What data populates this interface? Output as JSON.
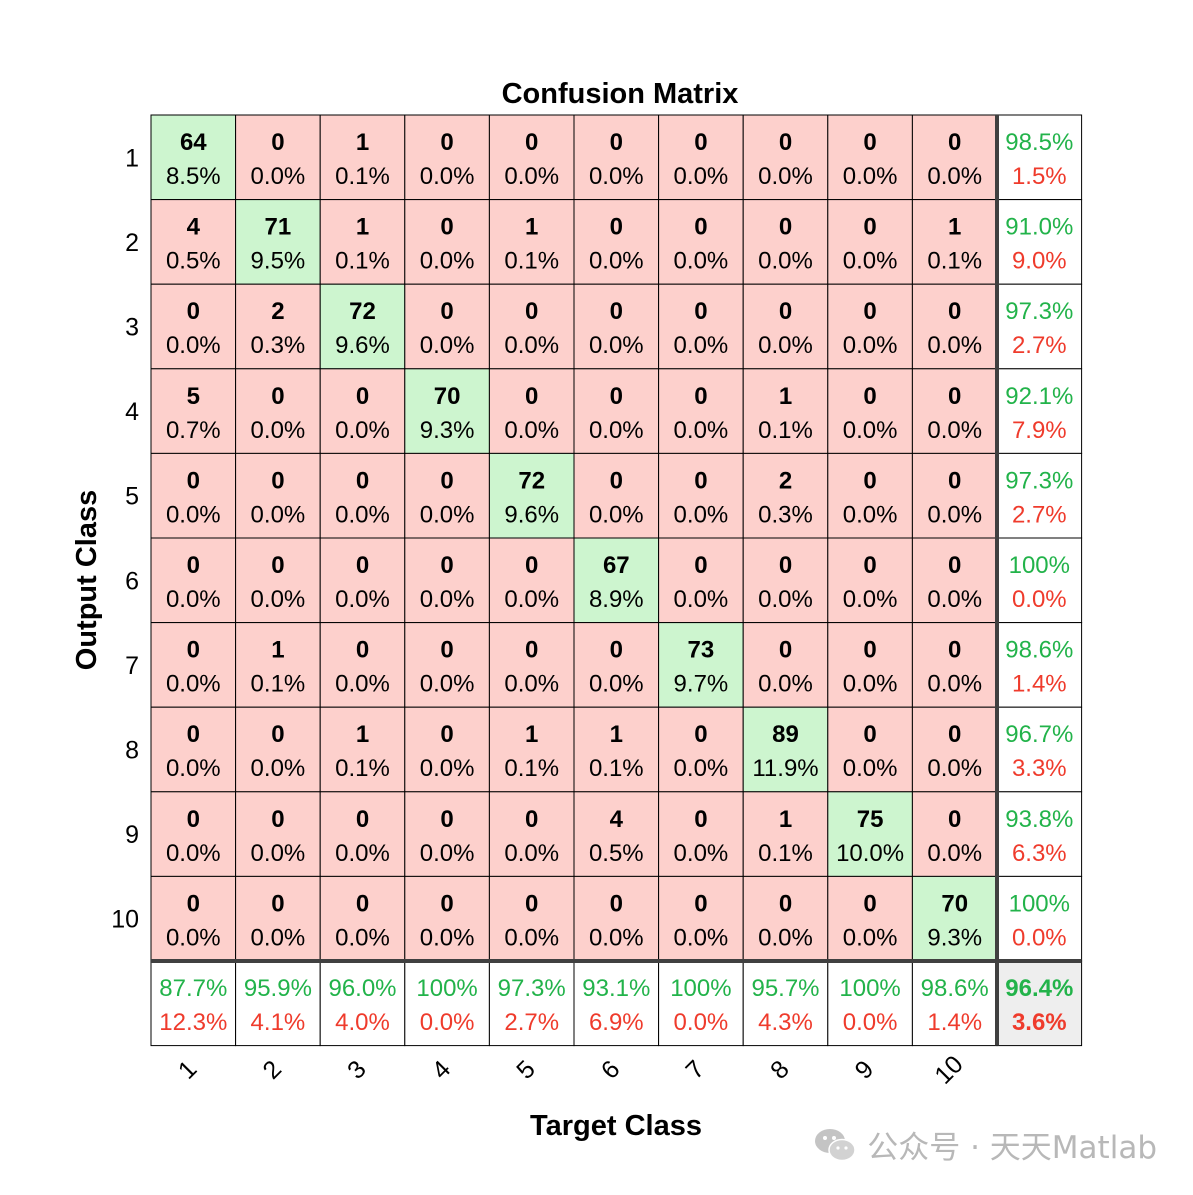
{
  "chart_data": {
    "type": "heatmap",
    "title": "Confusion Matrix",
    "xlabel": "Target Class",
    "ylabel": "Output Class",
    "row_labels": [
      "1",
      "2",
      "3",
      "4",
      "5",
      "6",
      "7",
      "8",
      "9",
      "10"
    ],
    "col_labels": [
      "1",
      "2",
      "3",
      "4",
      "5",
      "6",
      "7",
      "8",
      "9",
      "10"
    ],
    "matrix_counts": [
      [
        64,
        0,
        1,
        0,
        0,
        0,
        0,
        0,
        0,
        0
      ],
      [
        4,
        71,
        1,
        0,
        1,
        0,
        0,
        0,
        0,
        1
      ],
      [
        0,
        2,
        72,
        0,
        0,
        0,
        0,
        0,
        0,
        0
      ],
      [
        5,
        0,
        0,
        70,
        0,
        0,
        0,
        1,
        0,
        0
      ],
      [
        0,
        0,
        0,
        0,
        72,
        0,
        0,
        2,
        0,
        0
      ],
      [
        0,
        0,
        0,
        0,
        0,
        67,
        0,
        0,
        0,
        0
      ],
      [
        0,
        1,
        0,
        0,
        0,
        0,
        73,
        0,
        0,
        0
      ],
      [
        0,
        0,
        1,
        0,
        1,
        1,
        0,
        89,
        0,
        0
      ],
      [
        0,
        0,
        0,
        0,
        0,
        4,
        0,
        1,
        75,
        0
      ],
      [
        0,
        0,
        0,
        0,
        0,
        0,
        0,
        0,
        0,
        70
      ]
    ],
    "matrix_percents": [
      [
        "8.5%",
        "0.0%",
        "0.1%",
        "0.0%",
        "0.0%",
        "0.0%",
        "0.0%",
        "0.0%",
        "0.0%",
        "0.0%"
      ],
      [
        "0.5%",
        "9.5%",
        "0.1%",
        "0.0%",
        "0.1%",
        "0.0%",
        "0.0%",
        "0.0%",
        "0.0%",
        "0.1%"
      ],
      [
        "0.0%",
        "0.3%",
        "9.6%",
        "0.0%",
        "0.0%",
        "0.0%",
        "0.0%",
        "0.0%",
        "0.0%",
        "0.0%"
      ],
      [
        "0.7%",
        "0.0%",
        "0.0%",
        "9.3%",
        "0.0%",
        "0.0%",
        "0.0%",
        "0.1%",
        "0.0%",
        "0.0%"
      ],
      [
        "0.0%",
        "0.0%",
        "0.0%",
        "0.0%",
        "9.6%",
        "0.0%",
        "0.0%",
        "0.3%",
        "0.0%",
        "0.0%"
      ],
      [
        "0.0%",
        "0.0%",
        "0.0%",
        "0.0%",
        "0.0%",
        "8.9%",
        "0.0%",
        "0.0%",
        "0.0%",
        "0.0%"
      ],
      [
        "0.0%",
        "0.1%",
        "0.0%",
        "0.0%",
        "0.0%",
        "0.0%",
        "9.7%",
        "0.0%",
        "0.0%",
        "0.0%"
      ],
      [
        "0.0%",
        "0.0%",
        "0.1%",
        "0.0%",
        "0.1%",
        "0.1%",
        "0.0%",
        "11.9%",
        "0.0%",
        "0.0%"
      ],
      [
        "0.0%",
        "0.0%",
        "0.0%",
        "0.0%",
        "0.0%",
        "0.5%",
        "0.0%",
        "0.1%",
        "10.0%",
        "0.0%"
      ],
      [
        "0.0%",
        "0.0%",
        "0.0%",
        "0.0%",
        "0.0%",
        "0.0%",
        "0.0%",
        "0.0%",
        "0.0%",
        "9.3%"
      ]
    ],
    "row_summary": [
      {
        "correct": "98.5%",
        "incorrect": "1.5%"
      },
      {
        "correct": "91.0%",
        "incorrect": "9.0%"
      },
      {
        "correct": "97.3%",
        "incorrect": "2.7%"
      },
      {
        "correct": "92.1%",
        "incorrect": "7.9%"
      },
      {
        "correct": "97.3%",
        "incorrect": "2.7%"
      },
      {
        "correct": "100%",
        "incorrect": "0.0%"
      },
      {
        "correct": "98.6%",
        "incorrect": "1.4%"
      },
      {
        "correct": "96.7%",
        "incorrect": "3.3%"
      },
      {
        "correct": "93.8%",
        "incorrect": "6.3%"
      },
      {
        "correct": "100%",
        "incorrect": "0.0%"
      }
    ],
    "col_summary": [
      {
        "correct": "87.7%",
        "incorrect": "12.3%"
      },
      {
        "correct": "95.9%",
        "incorrect": "4.1%"
      },
      {
        "correct": "96.0%",
        "incorrect": "4.0%"
      },
      {
        "correct": "100%",
        "incorrect": "0.0%"
      },
      {
        "correct": "97.3%",
        "incorrect": "2.7%"
      },
      {
        "correct": "93.1%",
        "incorrect": "6.9%"
      },
      {
        "correct": "100%",
        "incorrect": "0.0%"
      },
      {
        "correct": "95.7%",
        "incorrect": "4.3%"
      },
      {
        "correct": "100%",
        "incorrect": "0.0%"
      },
      {
        "correct": "98.6%",
        "incorrect": "1.4%"
      }
    ],
    "overall": {
      "correct": "96.4%",
      "incorrect": "3.6%"
    },
    "legend": "none",
    "grid": true
  },
  "colors": {
    "diagonal_fill": "#cdf5cf",
    "offdiagonal_fill": "#fdd0cc",
    "summary_fill": "#ffffff",
    "overall_fill": "#eeeeee",
    "correct_text": "#22b34a",
    "incorrect_text": "#ef3b2c",
    "border": "#000000",
    "separator": "#404040",
    "text": "#000000"
  },
  "watermark": {
    "text": "公众号 · 天天Matlab",
    "icon": "wechat-icon"
  }
}
